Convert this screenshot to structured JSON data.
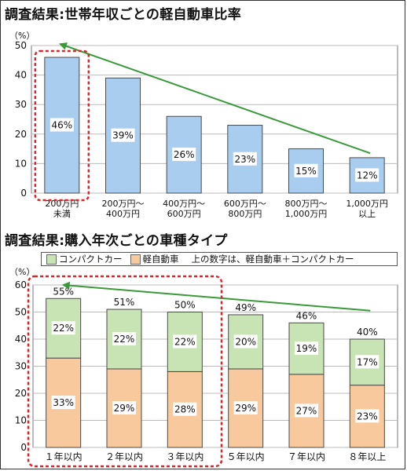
{
  "titles": {
    "chart1": "調査結果:世帯年収ごとの軽自動車比率",
    "chart2": "調査結果:購入年次ごとの車種タイプ"
  },
  "units": {
    "chart1": "（%）",
    "chart2": "（%）"
  },
  "legend": {
    "compact": "コンパクトカー",
    "kei": "軽自動車",
    "note": "上の数字は、軽自動車＋コンパクトカー"
  },
  "colors": {
    "bar_blue": "#a9cdef",
    "kei": "#f7c99c",
    "compact": "#c8e3b4",
    "trend": "#3a9a3a",
    "highlight": "#d9262a"
  },
  "chart_data": [
    {
      "type": "bar",
      "categories": [
        [
          "200万円",
          "未満"
        ],
        [
          "200万円～",
          "400万円"
        ],
        [
          "400万円～",
          "600万円"
        ],
        [
          "600万円～",
          "800万円"
        ],
        [
          "800万円～",
          "1,000万円"
        ],
        [
          "1,000万円",
          "以上"
        ]
      ],
      "values": [
        46,
        39,
        26,
        23,
        15,
        12
      ],
      "value_labels": [
        "46%",
        "39%",
        "26%",
        "23%",
        "15%",
        "12%"
      ],
      "ylim": [
        0,
        50
      ],
      "yticks": [
        0,
        10,
        20,
        30,
        40,
        50
      ],
      "grid": true,
      "trend_arrow": true,
      "highlighted_categories": [
        0
      ]
    },
    {
      "type": "bar",
      "stacked": true,
      "categories": [
        "１年以内",
        "２年以内",
        "３年以内",
        "５年以内",
        "７年以内",
        "８年以上"
      ],
      "series": [
        {
          "name": "軽自動車",
          "values": [
            33,
            29,
            28,
            29,
            27,
            23
          ],
          "labels": [
            "33%",
            "29%",
            "28%",
            "29%",
            "27%",
            "23%"
          ]
        },
        {
          "name": "コンパクトカー",
          "values": [
            22,
            22,
            22,
            20,
            19,
            17
          ],
          "labels": [
            "22%",
            "22%",
            "22%",
            "20%",
            "19%",
            "17%"
          ]
        }
      ],
      "totals": [
        55,
        51,
        50,
        49,
        46,
        40
      ],
      "total_labels": [
        "55%",
        "51%",
        "50%",
        "49%",
        "46%",
        "40%"
      ],
      "ylim": [
        0,
        60
      ],
      "yticks": [
        0,
        10,
        20,
        30,
        40,
        50,
        60
      ],
      "grid": true,
      "trend_arrow": true,
      "highlighted_categories": [
        0,
        1,
        2
      ]
    }
  ]
}
